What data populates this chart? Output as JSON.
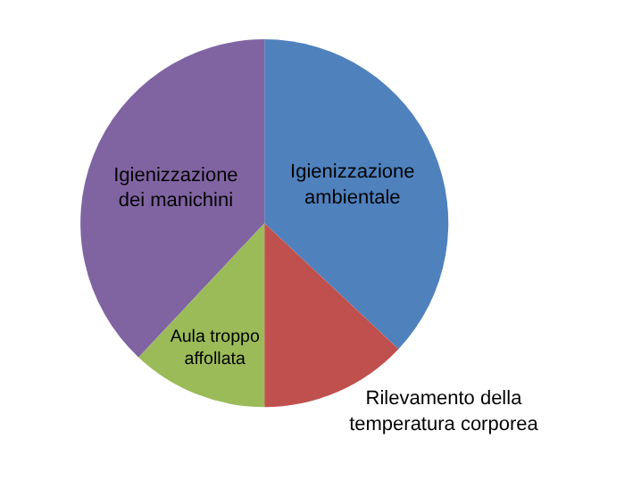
{
  "chart_data": {
    "type": "pie",
    "categories": [
      "Igienizzazione ambientale",
      "Rilevamento della temperatura corporea",
      "Aula troppo affollata",
      "Igienizzazione dei manichini"
    ],
    "values": [
      37,
      13,
      12,
      38
    ],
    "colors": [
      "#4f81bd",
      "#c0504d",
      "#9bbb59",
      "#8064a2"
    ],
    "legend": false
  }
}
